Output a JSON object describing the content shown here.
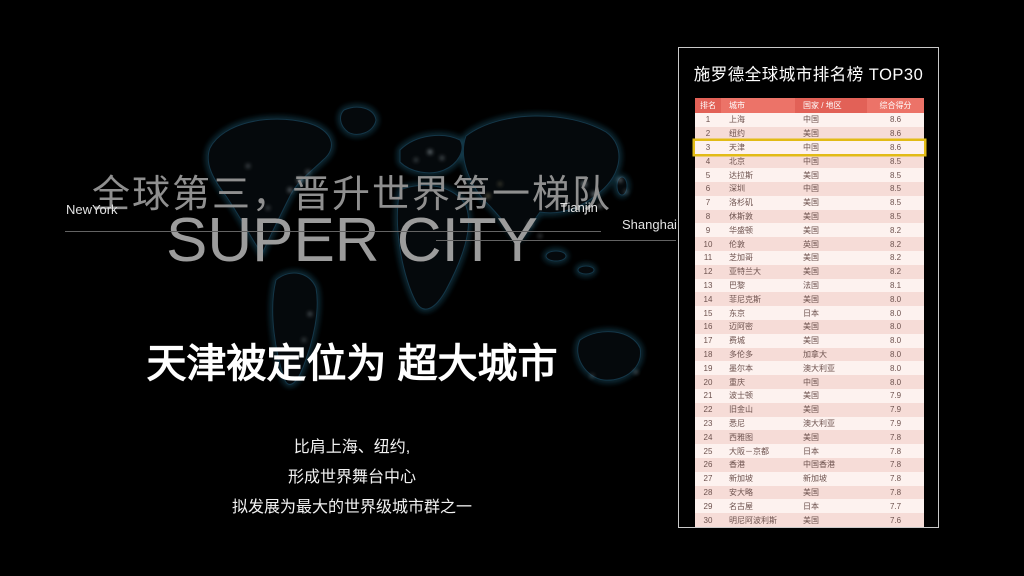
{
  "theme": {
    "header_red": "#ec7368",
    "header_red_alt": "#e26157",
    "row_light": "#fdf2ef",
    "row_dark": "#f6dcd7",
    "gold": "#e2bb16",
    "cell_text": "#6d524e",
    "panel_border": "#c9c9c9",
    "headline_gray": "#8f8f8f",
    "super_gray": "#9c9c9c",
    "line_gray": "#636363",
    "glow_cyan": "#2e89ad"
  },
  "slide": {
    "headline": "全球第三，晋升世界第一梯队",
    "super_title": "SUPER CITY",
    "subtitle": "天津被定位为 超大城市",
    "captions": [
      "比肩上海、纽约,",
      "形成世界舞台中心",
      "拟发展为最大的世界级城市群之一"
    ],
    "map_labels": {
      "newyork": "NewYork",
      "tianjin": "Tianjin",
      "shanghai": "Shanghai"
    }
  },
  "panel": {
    "title": "施罗德全球城市排名榜 TOP30",
    "highlight_rank": 3,
    "table": {
      "headers": [
        "排名",
        "城市",
        "国家 / 地区",
        "综合得分"
      ],
      "rows": [
        [
          1,
          "上海",
          "中国",
          "8.6"
        ],
        [
          2,
          "纽约",
          "美国",
          "8.6"
        ],
        [
          3,
          "天津",
          "中国",
          "8.6"
        ],
        [
          4,
          "北京",
          "中国",
          "8.5"
        ],
        [
          5,
          "达拉斯",
          "美国",
          "8.5"
        ],
        [
          6,
          "深圳",
          "中国",
          "8.5"
        ],
        [
          7,
          "洛杉矶",
          "美国",
          "8.5"
        ],
        [
          8,
          "休斯敦",
          "美国",
          "8.5"
        ],
        [
          9,
          "华盛顿",
          "美国",
          "8.2"
        ],
        [
          10,
          "伦敦",
          "英国",
          "8.2"
        ],
        [
          11,
          "芝加哥",
          "美国",
          "8.2"
        ],
        [
          12,
          "亚特兰大",
          "美国",
          "8.2"
        ],
        [
          13,
          "巴黎",
          "法国",
          "8.1"
        ],
        [
          14,
          "菲尼克斯",
          "美国",
          "8.0"
        ],
        [
          15,
          "东京",
          "日本",
          "8.0"
        ],
        [
          16,
          "迈阿密",
          "美国",
          "8.0"
        ],
        [
          17,
          "费城",
          "美国",
          "8.0"
        ],
        [
          18,
          "多伦多",
          "加拿大",
          "8.0"
        ],
        [
          19,
          "墨尔本",
          "澳大利亚",
          "8.0"
        ],
        [
          20,
          "重庆",
          "中国",
          "8.0"
        ],
        [
          21,
          "波士顿",
          "美国",
          "7.9"
        ],
        [
          22,
          "旧金山",
          "美国",
          "7.9"
        ],
        [
          23,
          "悉尼",
          "澳大利亚",
          "7.9"
        ],
        [
          24,
          "西雅图",
          "美国",
          "7.8"
        ],
        [
          25,
          "大阪－京都",
          "日本",
          "7.8"
        ],
        [
          26,
          "香港",
          "中国香港",
          "7.8"
        ],
        [
          27,
          "新加坡",
          "新加坡",
          "7.8"
        ],
        [
          28,
          "安大略",
          "美国",
          "7.8"
        ],
        [
          29,
          "名古屋",
          "日本",
          "7.7"
        ],
        [
          30,
          "明尼阿波利斯",
          "美国",
          "7.6"
        ]
      ]
    }
  }
}
